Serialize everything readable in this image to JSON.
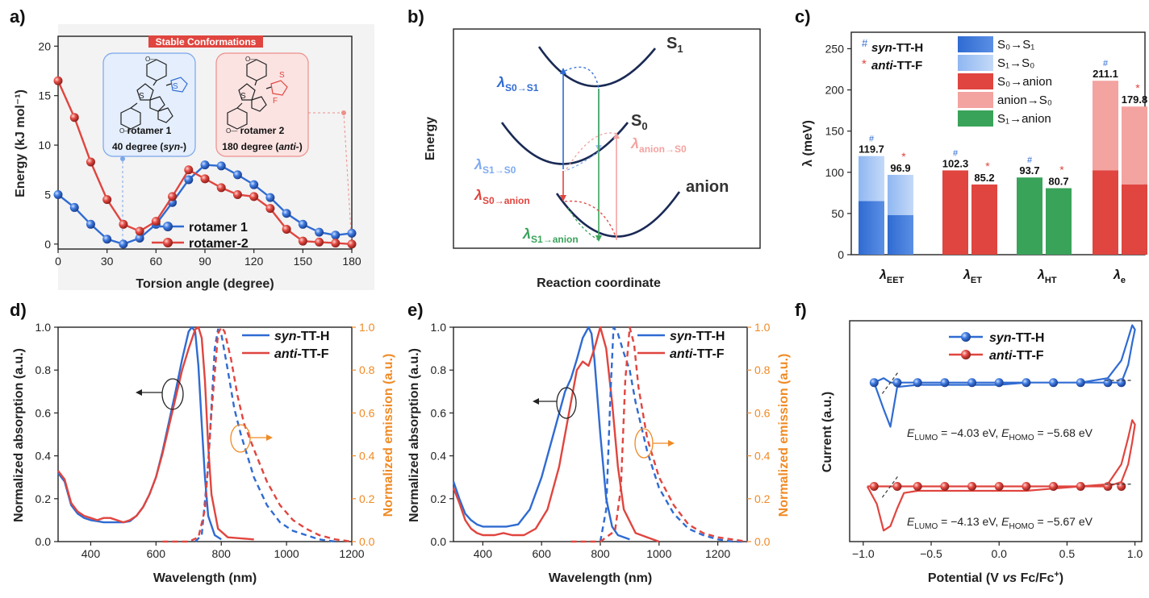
{
  "figure": {
    "panel_labels": [
      "a)",
      "b)",
      "c)",
      "d)",
      "e)",
      "f)"
    ],
    "colors": {
      "blue": "#2f6bd2",
      "red": "#e0453f",
      "green": "#3aa35a",
      "orange": "#f08a24",
      "pink": "#f3a3a0",
      "darkblue": "#1a2a55"
    }
  },
  "chart_data": [
    {
      "panel": "a",
      "type": "line",
      "xlabel": "Torsion angle (degree)",
      "ylabel": "Energy (kJ mol⁻¹)",
      "xlim": [
        0,
        180
      ],
      "ylim": [
        -0.5,
        21
      ],
      "xticks": [
        "0",
        "30",
        "60",
        "90",
        "120",
        "150",
        "180"
      ],
      "yticks": [
        "0",
        "5",
        "10",
        "15",
        "20"
      ],
      "banner": "Stable Conformations",
      "annotations": [
        {
          "name": "rotamer 1",
          "angle_text": "40 degree (",
          "angle_em": "syn-",
          "close": ")"
        },
        {
          "name": "rotamer 2",
          "angle_text": "180 degree (",
          "angle_em": "anti-",
          "close": ")"
        }
      ],
      "series": [
        {
          "name": "rotamer 1",
          "color": "#2f6bd2",
          "x": [
            0,
            10,
            20,
            30,
            40,
            50,
            60,
            70,
            80,
            90,
            100,
            110,
            120,
            130,
            140,
            150,
            160,
            170,
            180
          ],
          "y": [
            5.0,
            3.7,
            2.0,
            0.5,
            0.0,
            0.6,
            2.0,
            4.2,
            6.5,
            8.0,
            7.9,
            7.0,
            6.0,
            4.7,
            3.1,
            2.0,
            1.2,
            0.9,
            1.1
          ]
        },
        {
          "name": "rotamer-2",
          "color": "#e0453f",
          "x": [
            0,
            10,
            20,
            30,
            40,
            50,
            60,
            70,
            80,
            90,
            100,
            110,
            120,
            130,
            140,
            150,
            160,
            170,
            180
          ],
          "y": [
            16.5,
            12.8,
            8.3,
            4.5,
            2.0,
            1.3,
            2.3,
            4.8,
            7.5,
            6.6,
            5.7,
            5.0,
            4.8,
            3.6,
            1.5,
            0.3,
            0.2,
            0.1,
            0.0
          ]
        }
      ]
    },
    {
      "panel": "b",
      "type": "diagram",
      "ylabel": "Energy",
      "xlabel": "Reaction coordinate",
      "curves": [
        "S1",
        "S0",
        "anion"
      ],
      "labels": [
        {
          "text": "λ",
          "sub": "S0→S1",
          "color": "#2f6bd2"
        },
        {
          "text": "λ",
          "sub": "S1→S0",
          "color": "#7eaaf0"
        },
        {
          "text": "λ",
          "sub": "S0→anion",
          "color": "#e0453f"
        },
        {
          "text": "λ",
          "sub": "S1→anion",
          "color": "#3aa35a"
        },
        {
          "text": "λ",
          "sub": "anion→S0",
          "color": "#f3a3a0"
        }
      ]
    },
    {
      "panel": "c",
      "type": "bar",
      "ylabel": "λ (meV)",
      "ylim": [
        0,
        270
      ],
      "yticks": [
        "0",
        "50",
        "100",
        "150",
        "200",
        "250"
      ],
      "categories": [
        "λ_EET",
        "λ_ET",
        "λ_HT",
        "λ_e"
      ],
      "category_main": "λ",
      "category_subs": [
        "EET",
        "ET",
        "HT",
        "e"
      ],
      "legend_left": [
        {
          "mark": "#",
          "em": "syn",
          "text": "-TT-H"
        },
        {
          "mark": "*",
          "em": "anti",
          "text": "-TT-F"
        }
      ],
      "legend_right": [
        {
          "text": "S₀→S₁",
          "color": "#2f6bd2"
        },
        {
          "text": "S₁→S₀",
          "color": "#9cc0f4"
        },
        {
          "text": "S₀→anion",
          "color": "#e0453f"
        },
        {
          "text": "anion→S₀",
          "color": "#f3a3a0"
        },
        {
          "text": "S₁→anion",
          "color": "#3aa35a"
        }
      ],
      "bars": [
        {
          "category": "λ_EET",
          "molecule": "syn-TT-H",
          "total": 119.7,
          "label": "119.7",
          "lower": 65,
          "lower_color": "#2f6bd2",
          "upper_color": "#9cc0f4"
        },
        {
          "category": "λ_EET",
          "molecule": "anti-TT-F",
          "total": 96.9,
          "label": "96.9",
          "lower": 48,
          "lower_color": "#2f6bd2",
          "upper_color": "#9cc0f4"
        },
        {
          "category": "λ_ET",
          "molecule": "syn-TT-H",
          "total": 102.3,
          "label": "102.3",
          "lower": 102.3,
          "lower_color": "#e0453f",
          "upper_color": "#e0453f"
        },
        {
          "category": "λ_ET",
          "molecule": "anti-TT-F",
          "total": 85.2,
          "label": "85.2",
          "lower": 85.2,
          "lower_color": "#e0453f",
          "upper_color": "#e0453f"
        },
        {
          "category": "λ_HT",
          "molecule": "syn-TT-H",
          "total": 93.7,
          "label": "93.7",
          "lower": 93.7,
          "lower_color": "#3aa35a",
          "upper_color": "#3aa35a"
        },
        {
          "category": "λ_HT",
          "molecule": "anti-TT-F",
          "total": 80.7,
          "label": "80.7",
          "lower": 80.7,
          "lower_color": "#3aa35a",
          "upper_color": "#3aa35a"
        },
        {
          "category": "λ_e",
          "molecule": "syn-TT-H",
          "total": 211.1,
          "label": "211.1",
          "lower": 102.3,
          "lower_color": "#e0453f",
          "upper_color": "#f3a3a0"
        },
        {
          "category": "λ_e",
          "molecule": "anti-TT-F",
          "total": 179.8,
          "label": "179.8",
          "lower": 85.2,
          "lower_color": "#e0453f",
          "upper_color": "#f3a3a0"
        }
      ]
    },
    {
      "panel": "d",
      "type": "line",
      "xlabel": "Wavelength (nm)",
      "ylabel": "Normalized absorption (a.u.)",
      "ylabel_right": "Normalized emission (a.u.)",
      "xlim": [
        300,
        1200
      ],
      "ylim": [
        0,
        1.0
      ],
      "xticks": [
        "400",
        "600",
        "800",
        "1000",
        "1200"
      ],
      "yticks": [
        "0.0",
        "0.2",
        "0.4",
        "0.6",
        "0.8",
        "1.0"
      ],
      "legend": [
        {
          "em": "syn",
          "text": "-TT-H",
          "color": "#2f6bd2"
        },
        {
          "em": "anti",
          "text": "-TT-F",
          "color": "#e0453f"
        }
      ],
      "series": [
        {
          "name": "syn-TT-H absorption",
          "style": "solid",
          "color": "#2f6bd2",
          "x": [
            300,
            320,
            340,
            360,
            380,
            400,
            420,
            440,
            460,
            480,
            500,
            520,
            540,
            560,
            580,
            600,
            620,
            640,
            660,
            680,
            700,
            710,
            720,
            730,
            740,
            750,
            760,
            780,
            800
          ],
          "y": [
            0.32,
            0.28,
            0.17,
            0.13,
            0.11,
            0.1,
            0.095,
            0.09,
            0.09,
            0.09,
            0.09,
            0.095,
            0.12,
            0.16,
            0.22,
            0.3,
            0.42,
            0.56,
            0.7,
            0.85,
            0.98,
            1.0,
            0.98,
            0.82,
            0.55,
            0.3,
            0.12,
            0.03,
            0.01
          ]
        },
        {
          "name": "anti-TT-F absorption",
          "style": "solid",
          "color": "#e0453f",
          "x": [
            300,
            320,
            340,
            360,
            380,
            400,
            420,
            440,
            460,
            480,
            500,
            520,
            540,
            560,
            580,
            600,
            620,
            640,
            660,
            680,
            700,
            720,
            730,
            740,
            750,
            760,
            770,
            790,
            820,
            900
          ],
          "y": [
            0.33,
            0.29,
            0.18,
            0.14,
            0.12,
            0.11,
            0.1,
            0.11,
            0.11,
            0.1,
            0.09,
            0.1,
            0.12,
            0.16,
            0.22,
            0.3,
            0.41,
            0.54,
            0.67,
            0.8,
            0.9,
            0.99,
            1.0,
            0.95,
            0.75,
            0.45,
            0.22,
            0.06,
            0.02,
            0.01
          ]
        },
        {
          "name": "syn-TT-H emission",
          "style": "dashed",
          "color": "#2f6bd2",
          "x": [
            720,
            740,
            760,
            780,
            790,
            800,
            820,
            840,
            860,
            880,
            900,
            940,
            980,
            1020,
            1060,
            1100,
            1150
          ],
          "y": [
            0.0,
            0.03,
            0.35,
            0.9,
            0.99,
            0.97,
            0.8,
            0.62,
            0.5,
            0.4,
            0.3,
            0.17,
            0.09,
            0.05,
            0.03,
            0.01,
            0.0
          ]
        },
        {
          "name": "anti-TT-F emission",
          "style": "dashed",
          "color": "#e0453f",
          "x": [
            620,
            660,
            700,
            730,
            750,
            770,
            790,
            800,
            810,
            830,
            850,
            870,
            900,
            940,
            980,
            1020,
            1060,
            1100,
            1150,
            1200
          ],
          "y": [
            0.0,
            0.0,
            0.0,
            0.02,
            0.15,
            0.6,
            0.97,
            1.0,
            0.98,
            0.85,
            0.68,
            0.55,
            0.43,
            0.28,
            0.17,
            0.1,
            0.06,
            0.03,
            0.01,
            0.0
          ]
        }
      ]
    },
    {
      "panel": "e",
      "type": "line",
      "xlabel": "Wavelength (nm)",
      "ylabel": "Normalized absorption (a.u.)",
      "ylabel_right": "Normalized emission (a.u.)",
      "xlim": [
        300,
        1300
      ],
      "ylim": [
        0,
        1.0
      ],
      "xticks": [
        "400",
        "600",
        "800",
        "1000",
        "1200"
      ],
      "yticks": [
        "0.0",
        "0.2",
        "0.4",
        "0.6",
        "0.8",
        "1.0"
      ],
      "legend": [
        {
          "em": "syn",
          "text": "-TT-H",
          "color": "#2f6bd2"
        },
        {
          "em": "anti",
          "text": "-TT-F",
          "color": "#e0453f"
        }
      ],
      "series": [
        {
          "name": "syn-TT-H absorption",
          "style": "solid",
          "color": "#2f6bd2",
          "x": [
            300,
            320,
            340,
            360,
            380,
            400,
            440,
            480,
            520,
            560,
            600,
            640,
            680,
            700,
            720,
            740,
            760,
            770,
            780,
            800,
            820,
            840,
            860,
            900
          ],
          "y": [
            0.28,
            0.2,
            0.13,
            0.1,
            0.08,
            0.07,
            0.07,
            0.07,
            0.08,
            0.15,
            0.3,
            0.5,
            0.7,
            0.76,
            0.85,
            0.95,
            1.0,
            0.97,
            0.85,
            0.5,
            0.2,
            0.07,
            0.03,
            0.01
          ]
        },
        {
          "name": "anti-TT-F absorption",
          "style": "solid",
          "color": "#e0453f",
          "x": [
            300,
            320,
            340,
            360,
            380,
            400,
            440,
            470,
            500,
            540,
            580,
            620,
            660,
            700,
            720,
            740,
            760,
            780,
            800,
            820,
            840,
            860,
            880,
            920,
            960,
            1000
          ],
          "y": [
            0.25,
            0.18,
            0.1,
            0.06,
            0.04,
            0.03,
            0.03,
            0.04,
            0.03,
            0.03,
            0.06,
            0.15,
            0.35,
            0.65,
            0.8,
            0.84,
            0.82,
            0.9,
            1.0,
            0.9,
            0.65,
            0.35,
            0.15,
            0.04,
            0.02,
            0.0
          ]
        },
        {
          "name": "syn-TT-H emission",
          "style": "dashed",
          "color": "#2f6bd2",
          "x": [
            800,
            820,
            835,
            845,
            860,
            880,
            900,
            920,
            960,
            1000,
            1050,
            1100,
            1150,
            1200,
            1250,
            1300
          ],
          "y": [
            0.0,
            0.15,
            0.7,
            1.0,
            0.97,
            0.88,
            0.8,
            0.65,
            0.42,
            0.25,
            0.13,
            0.06,
            0.03,
            0.01,
            0.0,
            0.0
          ]
        },
        {
          "name": "anti-TT-F emission",
          "style": "dashed",
          "color": "#e0453f",
          "x": [
            700,
            800,
            850,
            870,
            885,
            900,
            915,
            930,
            960,
            1000,
            1050,
            1100,
            1150,
            1200,
            1250,
            1300
          ],
          "y": [
            0.0,
            0.0,
            0.05,
            0.25,
            0.75,
            1.0,
            0.92,
            0.72,
            0.48,
            0.3,
            0.17,
            0.08,
            0.04,
            0.02,
            0.01,
            0.0
          ]
        }
      ]
    },
    {
      "panel": "f",
      "type": "line",
      "xlabel": "Potential (V vs Fc/Fc⁺)",
      "xlabel_pre": "Potential (V ",
      "xlabel_em": "vs",
      "xlabel_post": " Fc/Fc",
      "xlabel_sup": "+",
      "xlabel_end": ")",
      "ylabel": "Current (a.u.)",
      "xlim": [
        -1.1,
        1.05
      ],
      "xticks": [
        "−1.0",
        "−0.5",
        "0.0",
        "0.5",
        "1.0"
      ],
      "legend": [
        {
          "em": "syn",
          "text": "-TT-H",
          "color": "#2f6bd2"
        },
        {
          "em": "anti",
          "text": "-TT-F",
          "color": "#e0453f"
        }
      ],
      "energy_labels": [
        {
          "lumo": " = −4.03 eV, ",
          "homo": " = −5.68 eV"
        },
        {
          "lumo": " = −4.13 eV, ",
          "homo": " = −5.67 eV"
        }
      ],
      "series": [
        {
          "name": "syn-TT-H",
          "color": "#2f6bd2",
          "offset": 0.72,
          "x": [
            -0.92,
            -0.85,
            -0.8,
            -0.78,
            -0.75,
            -0.6,
            -0.4,
            -0.2,
            0.0,
            0.2,
            0.4,
            0.6,
            0.8,
            0.9,
            0.95,
            0.98,
            1.0,
            0.98,
            0.95,
            0.9,
            0.8,
            0.6,
            0.4,
            0.2,
            0.0,
            -0.2,
            -0.4,
            -0.6,
            -0.75,
            -0.8,
            -0.85,
            -0.92
          ],
          "y": [
            0.0,
            0.02,
            0.0,
            0.0,
            0.0,
            0.0,
            0.0,
            0.0,
            0.0,
            0.0,
            0.0,
            0.0,
            0.0,
            0.0,
            0.08,
            0.18,
            0.24,
            0.26,
            0.2,
            0.1,
            0.02,
            0.0,
            0.0,
            0.0,
            -0.01,
            -0.01,
            -0.01,
            -0.01,
            -0.02,
            -0.2,
            -0.12,
            0.0
          ]
        },
        {
          "name": "anti-TT-F",
          "color": "#e0453f",
          "offset": 0.25,
          "x": [
            -0.97,
            -0.9,
            -0.85,
            -0.8,
            -0.75,
            -0.7,
            -0.6,
            -0.4,
            -0.2,
            0.0,
            0.2,
            0.4,
            0.6,
            0.8,
            0.9,
            0.95,
            0.98,
            1.0,
            0.98,
            0.95,
            0.9,
            0.8,
            0.6,
            0.4,
            0.2,
            0.0,
            -0.2,
            -0.4,
            -0.6,
            -0.7,
            -0.75,
            -0.8,
            -0.85,
            -0.9,
            -0.97
          ],
          "y": [
            0.0,
            0.0,
            0.0,
            0.0,
            0.0,
            0.0,
            0.0,
            0.0,
            0.0,
            0.0,
            0.0,
            0.0,
            0.0,
            0.0,
            0.02,
            0.1,
            0.2,
            0.28,
            0.3,
            0.22,
            0.1,
            0.01,
            0.0,
            -0.01,
            -0.02,
            -0.02,
            -0.02,
            -0.02,
            -0.02,
            -0.03,
            -0.1,
            -0.18,
            -0.2,
            -0.08,
            0.0
          ]
        }
      ]
    }
  ],
  "molecules": {
    "substituent": "O—",
    "s_atom": "S",
    "f_atom": "F"
  }
}
